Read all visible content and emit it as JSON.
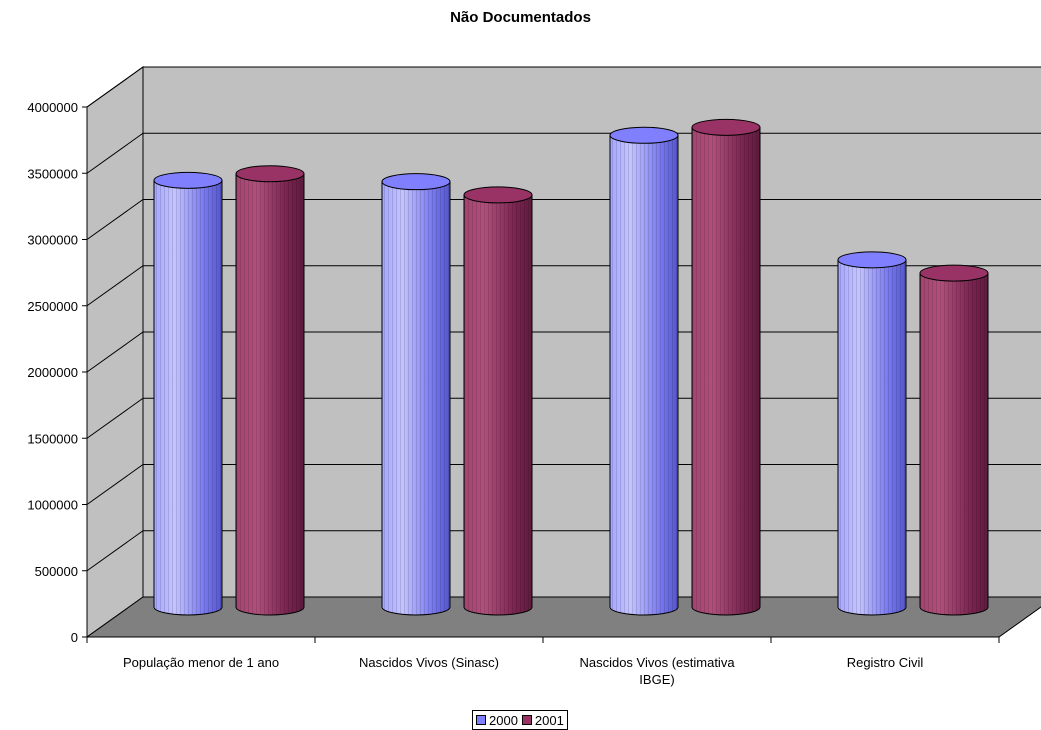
{
  "chart_data": {
    "type": "bar",
    "title": "Não Documentados",
    "categories": [
      [
        "População menor de 1 ano"
      ],
      [
        "Nascidos Vivos (Sinasc)"
      ],
      [
        "Nascidos Vivos (estimativa",
        "IBGE)"
      ],
      [
        "Registro Civil"
      ]
    ],
    "series": [
      {
        "name": "2000",
        "values": [
          3220000,
          3210000,
          3560000,
          2620000
        ],
        "color": "#8080ff"
      },
      {
        "name": "2001",
        "values": [
          3270000,
          3110000,
          3620000,
          2520000
        ],
        "color": "#993366"
      }
    ],
    "ylim": [
      0,
      4000000
    ],
    "yticks": [
      "0",
      "500000",
      "1000000",
      "1500000",
      "2000000",
      "2500000",
      "3000000",
      "3500000",
      "4000000"
    ],
    "grid": true,
    "three_d": true,
    "bar_shape": "cylinder",
    "legend_position": "bottom",
    "colors": {
      "wall": "#c0c0c0",
      "floor": "#808080"
    }
  }
}
